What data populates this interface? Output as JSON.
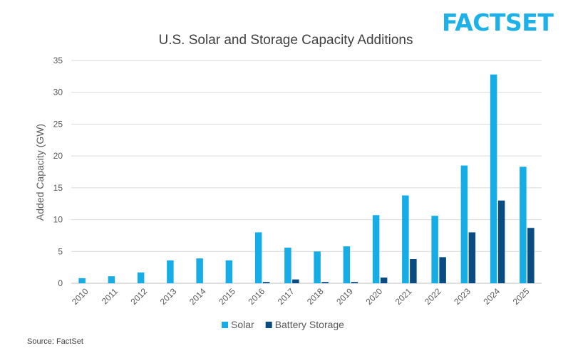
{
  "brand": {
    "logo_text": "FACTSET",
    "logo_color": "#1cb1e8"
  },
  "source": "Source: FactSet",
  "colors": {
    "solar": "#16ade6",
    "battery": "#0a4b82",
    "grid": "#d9d9d9",
    "axis": "#bfbfbf",
    "text": "#595959"
  },
  "chart_data": {
    "type": "bar",
    "title": "U.S. Solar and Storage Capacity Additions",
    "xlabel": "",
    "ylabel": "Added Capacity (GW)",
    "ylim": [
      0,
      35
    ],
    "yticks": [
      0,
      5,
      10,
      15,
      20,
      25,
      30,
      35
    ],
    "grid": true,
    "legend_position": "bottom",
    "categories": [
      "2010",
      "2011",
      "2012",
      "2013",
      "2014",
      "2015",
      "2016",
      "2017",
      "2018",
      "2019",
      "2020",
      "2021",
      "2022",
      "2023",
      "2024",
      "2025"
    ],
    "series": [
      {
        "name": "Solar",
        "color": "#16ade6",
        "values": [
          0.8,
          1.1,
          1.7,
          3.6,
          3.9,
          3.6,
          8.0,
          5.6,
          5.0,
          5.8,
          10.7,
          13.8,
          10.6,
          18.5,
          32.8,
          18.3
        ]
      },
      {
        "name": "Battery Storage",
        "color": "#0a4b82",
        "values": [
          0,
          0,
          0,
          0,
          0,
          0,
          0.2,
          0.6,
          0.2,
          0.2,
          0.9,
          3.8,
          4.1,
          8.0,
          13.0,
          8.7
        ]
      }
    ]
  }
}
